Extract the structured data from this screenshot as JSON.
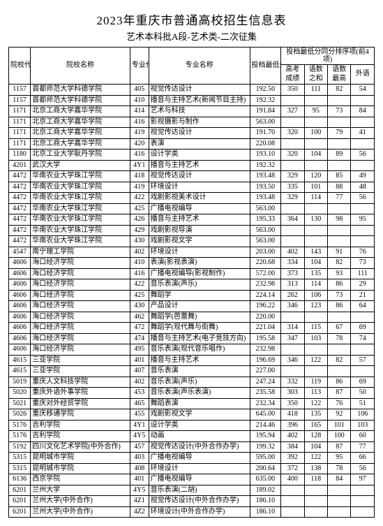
{
  "title": "2023年重庆市普通高校招生信息表",
  "subtitle": "艺术本科批A段-艺术类-二次征集",
  "headers": {
    "school_code": "院校代号",
    "school_name": "院校名称",
    "major_code": "专业代号",
    "major_name": "专业名称",
    "min_score": "投档最低分",
    "rank_group": "投档最低分同分排序项(前4项)",
    "gaokao": "高考成绩",
    "yushu_sum": "语数之和",
    "yushu_max": "语数最高",
    "waiyu": "外语"
  },
  "rows": [
    [
      "1157",
      "首都师范大学科德学院",
      "405",
      "视觉传达设计",
      "192.50",
      "350",
      "111",
      "82",
      "54"
    ],
    [
      "1157",
      "首都师范大学科德学院",
      "410",
      "播音与主持艺术(新闻节目主持)",
      "192.32",
      "",
      "",
      "",
      ""
    ],
    [
      "1171",
      "北京工商大学嘉华学院",
      "414",
      "艺术与科技",
      "191.84",
      "327",
      "95",
      "73",
      "84"
    ],
    [
      "1171",
      "北京工商大学嘉华学院",
      "416",
      "影视摄影与制作",
      "563.00",
      "",
      "",
      "",
      ""
    ],
    [
      "1171",
      "北京工商大学嘉华学院",
      "419",
      "视觉传达设计",
      "191.70",
      "320",
      "100",
      "79",
      "41"
    ],
    [
      "1171",
      "北京工商大学嘉华学院",
      "420",
      "表演",
      "220.08",
      "",
      "",
      "",
      ""
    ],
    [
      "1180",
      "北京工业大学耿丹学院",
      "416",
      "设计学类",
      "193.10",
      "320",
      "104",
      "89",
      "56"
    ],
    [
      "4201",
      "武汉大学",
      "4Y1",
      "播音与主持艺术",
      "192.32",
      "",
      "",
      "",
      ""
    ],
    [
      "4472",
      "华南农业大学珠江学院",
      "418",
      "视觉传达设计",
      "193.48",
      "329",
      "120",
      "85",
      "49"
    ],
    [
      "4472",
      "华南农业大学珠江学院",
      "419",
      "环境设计",
      "193.50",
      "335",
      "101",
      "88",
      "48"
    ],
    [
      "4472",
      "华南农业大学珠江学院",
      "422",
      "戏剧影视美术设计",
      "193.48",
      "329",
      "114",
      "77",
      "56"
    ],
    [
      "4472",
      "华南农业大学珠江学院",
      "425",
      "广播电视编导",
      "563.00",
      "",
      "",
      "",
      ""
    ],
    [
      "4472",
      "华南农业大学珠江学院",
      "426",
      "播音与主持艺术",
      "195.33",
      "364",
      "130",
      "98",
      "95"
    ],
    [
      "4472",
      "华南农业大学珠江学院",
      "429",
      "戏剧影视导演",
      "563.00",
      "",
      "",
      "",
      ""
    ],
    [
      "4472",
      "华南农业大学珠江学院",
      "430",
      "戏剧影视文学",
      "563.00",
      "",
      "",
      "",
      ""
    ],
    [
      "4547",
      "南宁理工学院",
      "402",
      "环境设计",
      "203.00",
      "402",
      "143",
      "91",
      "76"
    ],
    [
      "4606",
      "海口经济学院",
      "410",
      "表演(影视表演)",
      "220.68",
      "334",
      "104",
      "82",
      "73"
    ],
    [
      "4606",
      "海口经济学院",
      "416",
      "广播电视编导(影视制作)",
      "572.00",
      "373",
      "135",
      "93",
      "111"
    ],
    [
      "4606",
      "海口经济学院",
      "422",
      "音乐表演(声乐)",
      "232.98",
      "313",
      "114",
      "86",
      "29"
    ],
    [
      "4606",
      "海口经济学院",
      "425",
      "舞蹈学",
      "224.14",
      "262",
      "106",
      "73",
      "21"
    ],
    [
      "4606",
      "海口经济学院",
      "430",
      "产品设计",
      "196.22",
      "346",
      "123",
      "86",
      "64"
    ],
    [
      "4606",
      "海口经济学院",
      "462",
      "舞蹈学(芭蕾舞)",
      "220.00",
      "",
      "",
      "",
      ""
    ],
    [
      "4606",
      "海口经济学院",
      "472",
      "舞蹈学(现代舞与街舞)",
      "221.04",
      "314",
      "115",
      "67",
      "69"
    ],
    [
      "4606",
      "海口经济学院",
      "474",
      "播音与主持艺术(电子竞技方向)",
      "195.58",
      "347",
      "103",
      "78",
      "74"
    ],
    [
      "4606",
      "海口经济学院",
      "495",
      "音乐表演(现代音乐唱作)",
      "232.98",
      "",
      "",
      "",
      ""
    ],
    [
      "4615",
      "三亚学院",
      "401",
      "播音与主持艺术",
      "196.69",
      "346",
      "122",
      "82",
      "57"
    ],
    [
      "4615",
      "三亚学院",
      "407",
      "音乐表演",
      "227.00",
      "",
      "",
      "",
      ""
    ],
    [
      "5019",
      "重庆人文科技学院",
      "402",
      "音乐表演(声乐)",
      "247.24",
      "332",
      "119",
      "86",
      "69"
    ],
    [
      "5020",
      "重庆外语外事学院",
      "453",
      "音乐表演(声乐表演)",
      "235.58",
      "303",
      "113",
      "87",
      "50"
    ],
    [
      "5021",
      "重庆对外经贸学院",
      "465",
      "舞蹈表演",
      "232.34",
      "350",
      "122",
      "76",
      "51"
    ],
    [
      "5026",
      "重庆移通学院",
      "455",
      "戏剧影视文学",
      "645.00",
      "418",
      "135",
      "92",
      "106"
    ],
    [
      "5176",
      "吉利学院",
      "4Y1",
      "设计学类",
      "214.46",
      "396",
      "165",
      "101",
      "103"
    ],
    [
      "5176",
      "吉利学院",
      "4Y5",
      "动画",
      "195.94",
      "402",
      "128",
      "100",
      "60"
    ],
    [
      "5192",
      "四川文化艺术学院(中外合作)",
      "457",
      "视觉传达设计(中外合作办学)",
      "199.32",
      "384",
      "104",
      "87",
      "77"
    ],
    [
      "5315",
      "昆明城市学院",
      "403",
      "广播电视编导",
      "595.00",
      "392",
      "122",
      "95",
      "66"
    ],
    [
      "5315",
      "昆明城市学院",
      "408",
      "环境设计",
      "200.64",
      "372",
      "138",
      "78",
      "56"
    ],
    [
      "6136",
      "西京学院",
      "401",
      "广播电视编导",
      "635.00",
      "400",
      "118",
      "84",
      "97"
    ],
    [
      "6201",
      "兰州大学",
      "4Y5",
      "音乐表演(二胡)",
      "189.02",
      "",
      "",
      "",
      ""
    ],
    [
      "6201",
      "兰州大学(中外合作)",
      "4Z1",
      "视觉传达设计(中外合作办学)",
      "186.10",
      "",
      "",
      "",
      ""
    ],
    [
      "6201",
      "兰州大学(中外合作)",
      "4Z2",
      "环境设计(中外合作办学)",
      "186.10",
      "",
      "",
      "",
      ""
    ]
  ]
}
